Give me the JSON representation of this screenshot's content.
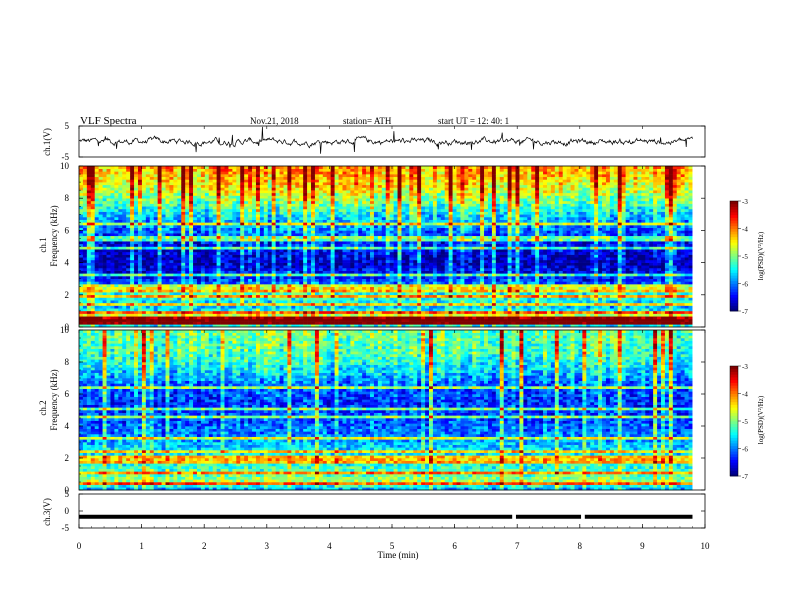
{
  "header": {
    "title": "VLF  Spectra",
    "date": "Nov.21, 2018",
    "station": "station= ATH",
    "start": "start  UT  =   12: 40: 1"
  },
  "chart_data": [
    {
      "type": "line",
      "panel": "ch1-waveform",
      "ylabel": "ch.1(V)",
      "ylim": [
        -5,
        5
      ],
      "yticks": [
        "5",
        "-5"
      ],
      "xlim": [
        0,
        10
      ],
      "series": [
        {
          "color": "#000000",
          "baseline": 0,
          "noise_amplitude": 1.2,
          "x_end": 9.8
        }
      ]
    },
    {
      "type": "heatmap",
      "panel": "ch1-spectrogram",
      "ylabel_top": "ch.1",
      "ylabel": "Frequency  (kHz)",
      "ylim": [
        0,
        10
      ],
      "yticks": [
        "0",
        "2",
        "4",
        "6",
        "8",
        "10"
      ],
      "xlim": [
        0,
        9.8
      ],
      "colorbar": {
        "label": "log(PSD)(V²/Hz)",
        "range": [
          -7,
          -3
        ],
        "ticks": [
          "-3",
          "-4",
          "-5",
          "-6",
          "-7"
        ]
      },
      "profile": [
        {
          "f": 0.0,
          "v": -6.2
        },
        {
          "f": 0.3,
          "v": -3.6
        },
        {
          "f": 0.7,
          "v": -4.6
        },
        {
          "f": 1.2,
          "v": -5.8
        },
        {
          "f": 2.0,
          "v": -5.3
        },
        {
          "f": 3.0,
          "v": -6.4
        },
        {
          "f": 4.0,
          "v": -6.8
        },
        {
          "f": 5.0,
          "v": -6.5
        },
        {
          "f": 6.0,
          "v": -6.1
        },
        {
          "f": 7.0,
          "v": -5.6
        },
        {
          "f": 8.0,
          "v": -4.9
        },
        {
          "f": 9.0,
          "v": -4.4
        },
        {
          "f": 10.0,
          "v": -4.1
        }
      ],
      "lines_khz": [
        0.3,
        0.5,
        0.9,
        1.4,
        1.9,
        2.2,
        2.5,
        3.2,
        4.9,
        5.5,
        6.4
      ]
    },
    {
      "type": "heatmap",
      "panel": "ch2-spectrogram",
      "ylabel_top": "ch.2",
      "ylabel": "Frequency  (kHz)",
      "ylim": [
        0,
        10
      ],
      "yticks": [
        "0",
        "2",
        "4",
        "6",
        "8",
        "10"
      ],
      "xlim": [
        0,
        9.8
      ],
      "colorbar": {
        "label": "log(PSD)(V²/Hz)",
        "range": [
          -7,
          -3
        ],
        "ticks": [
          "-3",
          "-4",
          "-5",
          "-6",
          "-7"
        ]
      },
      "profile": [
        {
          "f": 0.0,
          "v": -6.0
        },
        {
          "f": 0.5,
          "v": -4.8
        },
        {
          "f": 1.0,
          "v": -5.2
        },
        {
          "f": 1.8,
          "v": -5.4
        },
        {
          "f": 2.5,
          "v": -5.6
        },
        {
          "f": 3.5,
          "v": -6.0
        },
        {
          "f": 4.5,
          "v": -6.2
        },
        {
          "f": 5.5,
          "v": -6.3
        },
        {
          "f": 6.5,
          "v": -6.1
        },
        {
          "f": 7.5,
          "v": -5.6
        },
        {
          "f": 8.5,
          "v": -5.2
        },
        {
          "f": 9.5,
          "v": -5.1
        },
        {
          "f": 10.0,
          "v": -5.0
        }
      ],
      "lines_khz": [
        0.4,
        1.1,
        1.7,
        2.0,
        2.4,
        3.3,
        4.6,
        5.1,
        6.4
      ]
    },
    {
      "type": "line",
      "panel": "ch3-waveform",
      "ylabel": "ch.3(V)",
      "ylim": [
        -5,
        5
      ],
      "yticks": [
        "5",
        "0",
        "-5"
      ],
      "xlim": [
        0,
        10
      ],
      "xlabel": "Time  (min)",
      "xticks": [
        "0",
        "1",
        "2",
        "3",
        "4",
        "5",
        "6",
        "7",
        "8",
        "9",
        "10"
      ],
      "series": [
        {
          "color": "#000000",
          "level": -1.7,
          "gaps_min": [
            6.95,
            8.05
          ],
          "x_end": 9.8
        }
      ]
    }
  ]
}
